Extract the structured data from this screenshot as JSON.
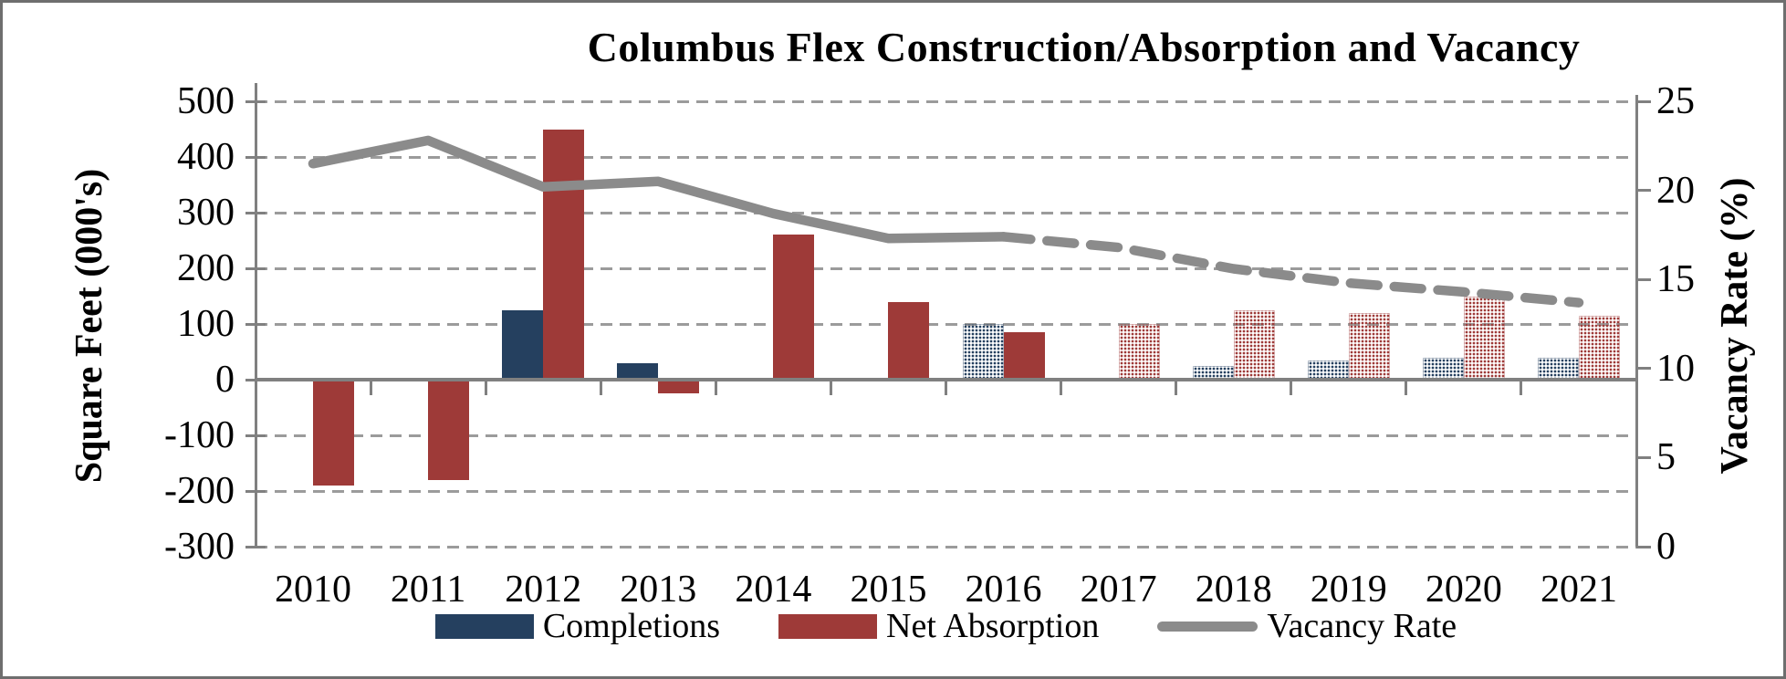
{
  "title": "Columbus Flex Construction/Absorption and Vacancy",
  "left_axis": {
    "title": "Square Feet (000's)",
    "ticks": [
      500,
      400,
      300,
      200,
      100,
      0,
      -100,
      -200,
      -300
    ]
  },
  "right_axis": {
    "title": "Vacancy Rate (%)",
    "ticks": [
      25,
      20,
      15,
      10,
      5,
      0
    ]
  },
  "legend": {
    "completions": "Completions",
    "net_absorption": "Net Absorption",
    "vacancy_rate": "Vacancy Rate"
  },
  "chart_data": {
    "type": "bar+line",
    "title": "Columbus Flex Construction/Absorption and Vacancy",
    "categories": [
      2010,
      2011,
      2012,
      2013,
      2014,
      2015,
      2016,
      2017,
      2018,
      2019,
      2020,
      2021
    ],
    "series": [
      {
        "name": "Completions",
        "type": "bar",
        "axis": "left",
        "color": "#25405F",
        "forecast_from": 2016,
        "values": [
          0,
          0,
          125,
          30,
          0,
          0,
          100,
          0,
          25,
          35,
          40,
          40
        ]
      },
      {
        "name": "Net Absorption",
        "type": "bar",
        "axis": "left",
        "color": "#9E3A38",
        "forecast_from": 2017,
        "values": [
          -190,
          -180,
          450,
          -25,
          260,
          140,
          85,
          100,
          125,
          120,
          150,
          115
        ]
      },
      {
        "name": "Vacancy Rate",
        "type": "line",
        "axis": "right",
        "color": "#8B8B8B",
        "forecast_from": 2017,
        "values": [
          21.5,
          22.8,
          20.2,
          20.5,
          18.7,
          17.3,
          17.4,
          16.8,
          15.6,
          14.8,
          14.3,
          13.7
        ]
      }
    ],
    "left_axis_range": [
      -300,
      500
    ],
    "right_axis_range": [
      0,
      25
    ],
    "grid": "dashed-horizontal",
    "legend_position": "bottom",
    "colors": {
      "gridline": "#9B9B9B",
      "axis": "#808080",
      "text": "#000000",
      "background": "#FFFFFF"
    }
  }
}
